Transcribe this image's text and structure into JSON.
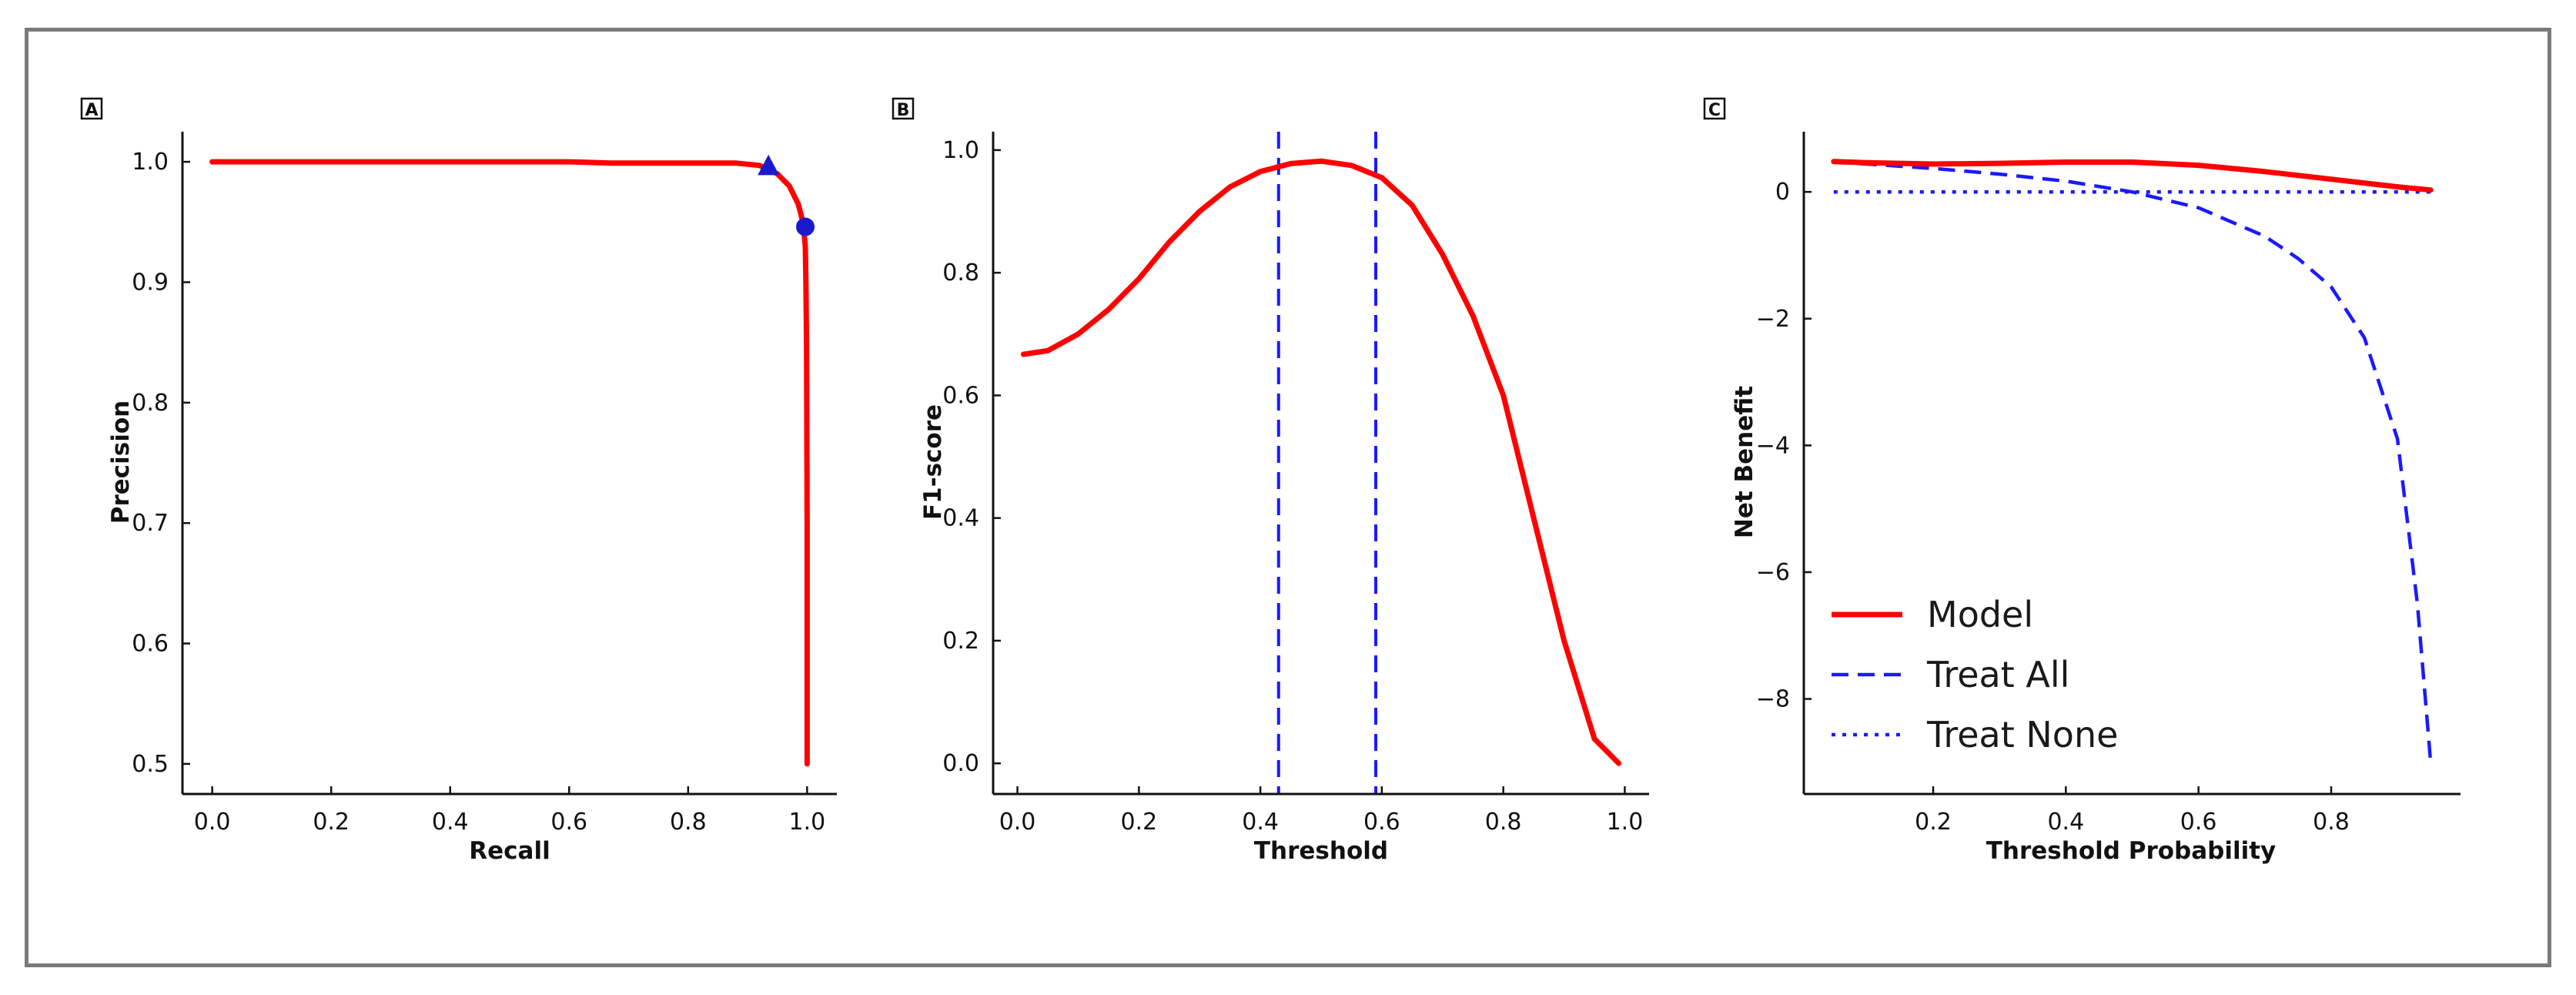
{
  "chart_data": [
    {
      "panel": "A",
      "type": "line",
      "title": "",
      "xlabel": "Recall",
      "ylabel": "Precision",
      "xlim": [
        -0.05,
        1.05
      ],
      "ylim": [
        0.475,
        1.025
      ],
      "xticks": [
        0.0,
        0.2,
        0.4,
        0.6,
        0.8,
        1.0
      ],
      "xtick_labels": [
        "0.0",
        "0.2",
        "0.4",
        "0.6",
        "0.8",
        "1.0"
      ],
      "yticks": [
        0.5,
        0.6,
        0.7,
        0.8,
        0.9,
        1.0
      ],
      "ytick_labels": [
        "0.5",
        "0.6",
        "0.7",
        "0.8",
        "0.9",
        "1.0"
      ],
      "series": [
        {
          "name": "PR curve",
          "color": "#ff0000",
          "style": "solid",
          "x": [
            0.0,
            0.2,
            0.4,
            0.6,
            0.67,
            0.8,
            0.88,
            0.92,
            0.95,
            0.97,
            0.985,
            0.993,
            0.997,
            0.998,
            0.999,
            1.0,
            1.0
          ],
          "y": [
            1.0,
            1.0,
            1.0,
            1.0,
            0.999,
            0.999,
            0.999,
            0.997,
            0.99,
            0.98,
            0.965,
            0.95,
            0.93,
            0.9,
            0.85,
            0.7,
            0.5
          ]
        }
      ],
      "markers": [
        {
          "label": "triangle",
          "shape": "triangle",
          "x": 0.935,
          "y": 0.997,
          "color": "#1a1acc"
        },
        {
          "label": "circle",
          "shape": "circle",
          "x": 0.997,
          "y": 0.946,
          "color": "#1a1acc"
        }
      ]
    },
    {
      "panel": "B",
      "type": "line",
      "title": "",
      "xlabel": "Threshold",
      "ylabel": "F1-score",
      "xlim": [
        -0.04,
        1.04
      ],
      "ylim": [
        -0.05,
        1.03
      ],
      "xticks": [
        0.0,
        0.2,
        0.4,
        0.6,
        0.8,
        1.0
      ],
      "xtick_labels": [
        "0.0",
        "0.2",
        "0.4",
        "0.6",
        "0.8",
        "1.0"
      ],
      "yticks": [
        0.0,
        0.2,
        0.4,
        0.6,
        0.8,
        1.0
      ],
      "ytick_labels": [
        "0.0",
        "0.2",
        "0.4",
        "0.6",
        "0.8",
        "1.0"
      ],
      "series": [
        {
          "name": "F1-score",
          "color": "#ff0000",
          "style": "solid",
          "x": [
            0.01,
            0.05,
            0.1,
            0.15,
            0.2,
            0.25,
            0.3,
            0.35,
            0.4,
            0.45,
            0.5,
            0.55,
            0.6,
            0.65,
            0.7,
            0.75,
            0.8,
            0.85,
            0.9,
            0.95,
            0.99
          ],
          "y": [
            0.667,
            0.673,
            0.7,
            0.74,
            0.79,
            0.85,
            0.9,
            0.94,
            0.965,
            0.978,
            0.982,
            0.975,
            0.955,
            0.91,
            0.83,
            0.73,
            0.6,
            0.4,
            0.2,
            0.04,
            0.0
          ]
        }
      ],
      "vlines": [
        {
          "label": "lower threshold",
          "x": 0.43,
          "color": "#1a1aff",
          "style": "dashed"
        },
        {
          "label": "upper threshold",
          "x": 0.59,
          "color": "#1a1aff",
          "style": "dashed"
        }
      ]
    },
    {
      "panel": "C",
      "type": "line",
      "title": "",
      "xlabel": "Threshold Probability",
      "ylabel": "Net Benefit",
      "xlim": [
        0.005,
        0.995
      ],
      "ylim": [
        -9.5,
        0.95
      ],
      "xticks": [
        0.2,
        0.4,
        0.6,
        0.8
      ],
      "xtick_labels": [
        "0.2",
        "0.4",
        "0.6",
        "0.8"
      ],
      "yticks": [
        0,
        -2,
        -4,
        -6,
        -8
      ],
      "ytick_labels": [
        "0",
        "−2",
        "−4",
        "−6",
        "−8"
      ],
      "series": [
        {
          "name": "Model",
          "color": "#ff0000",
          "style": "solid",
          "x": [
            0.05,
            0.1,
            0.2,
            0.3,
            0.4,
            0.5,
            0.6,
            0.7,
            0.8,
            0.9,
            0.95
          ],
          "y": [
            0.48,
            0.46,
            0.44,
            0.45,
            0.47,
            0.47,
            0.42,
            0.32,
            0.2,
            0.08,
            0.03
          ]
        },
        {
          "name": "Treat All",
          "color": "#1a1aff",
          "style": "dashed",
          "x": [
            0.05,
            0.1,
            0.2,
            0.3,
            0.4,
            0.5,
            0.6,
            0.7,
            0.75,
            0.8,
            0.85,
            0.9,
            0.93,
            0.95
          ],
          "y": [
            0.47,
            0.44,
            0.37,
            0.28,
            0.17,
            0.0,
            -0.25,
            -0.7,
            -1.05,
            -1.5,
            -2.3,
            -3.9,
            -6.5,
            -9.0
          ]
        },
        {
          "name": "Treat None",
          "color": "#1a1aff",
          "style": "dotted",
          "x": [
            0.05,
            0.95
          ],
          "y": [
            0,
            0
          ]
        }
      ],
      "legend": {
        "position": "lower-left",
        "entries": [
          "Model",
          "Treat All",
          "Treat None"
        ]
      }
    }
  ]
}
